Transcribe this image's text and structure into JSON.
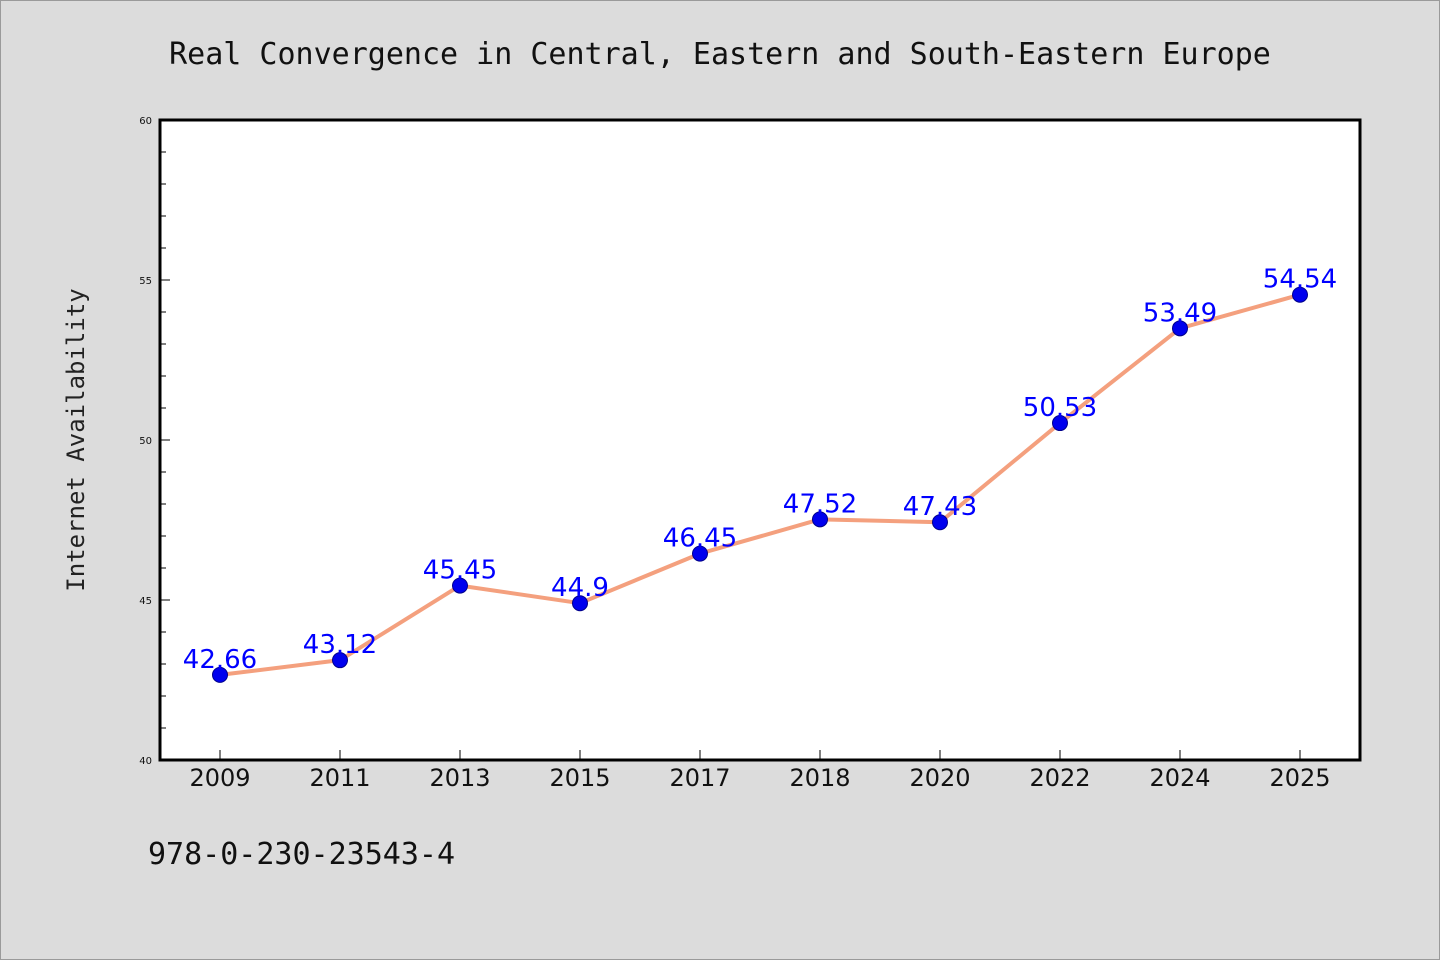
{
  "chart_data": {
    "type": "line",
    "title": "Real Convergence in Central, Eastern and South-Eastern Europe",
    "ylabel": "Internet Availability",
    "xlabel": "",
    "categories": [
      "2009",
      "2011",
      "2013",
      "2015",
      "2017",
      "2018",
      "2020",
      "2022",
      "2024",
      "2025"
    ],
    "values": [
      42.66,
      43.12,
      45.45,
      44.9,
      46.45,
      47.52,
      47.43,
      50.53,
      53.49,
      54.54
    ],
    "data_labels": [
      "42.66",
      "43.12",
      "45.45",
      "44.9",
      "46.45",
      "47.52",
      "47.43",
      "50.53",
      "53.49",
      "54.54"
    ],
    "ylim": [
      40,
      60
    ],
    "yticks": [
      "40",
      "45",
      "50",
      "55",
      "60"
    ],
    "grid": false,
    "line_color": "#f4a07e",
    "marker_color": "#0000ee",
    "label_color": "#0000ff"
  },
  "footer": {
    "isbn": "978-0-230-23543-4"
  }
}
